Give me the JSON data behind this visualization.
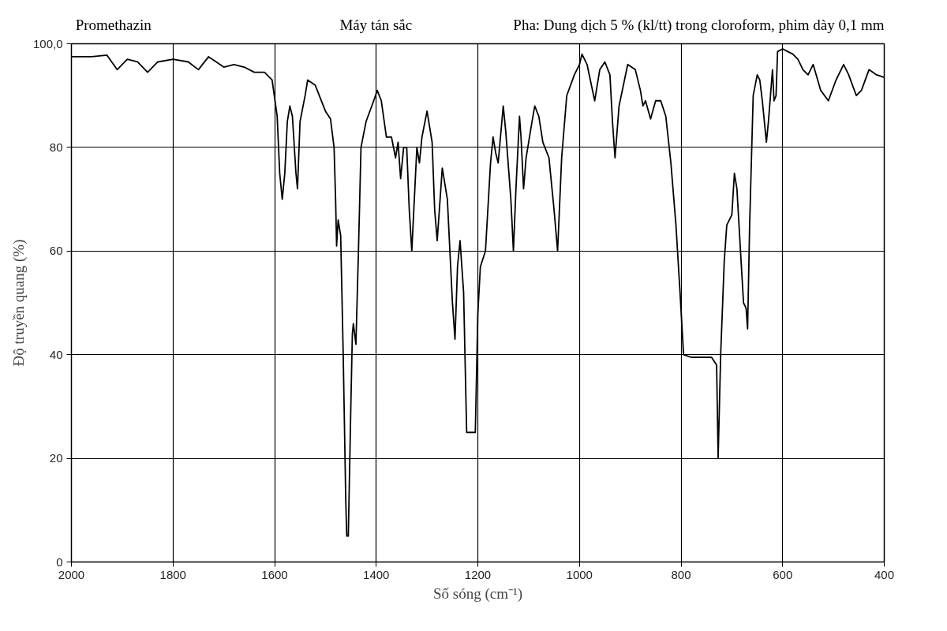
{
  "chart_data": {
    "type": "line",
    "title": "Promethazin",
    "xlabel": "Số sóng (cm⁻¹)",
    "ylabel": "Độ truyền quang (%)",
    "annotations": [
      "Máy tán sắc",
      "Pha: Dung dịch 5 % (kl/tt) trong cloroform, phim dày 0,1 mm"
    ],
    "xlim": [
      2000,
      400
    ],
    "xticks": [
      2000,
      1800,
      1600,
      1400,
      1200,
      1000,
      800,
      600,
      400
    ],
    "ylim": [
      0,
      100
    ],
    "yticks": [
      0,
      20,
      40,
      60,
      80,
      {
        "value": 100,
        "label": "100,0"
      }
    ],
    "grid": true,
    "series": [
      {
        "color": "#000000",
        "x": [
          2000,
          1960,
          1930,
          1910,
          1890,
          1870,
          1850,
          1830,
          1800,
          1770,
          1750,
          1730,
          1700,
          1680,
          1660,
          1640,
          1620,
          1605,
          1595,
          1590,
          1585,
          1580,
          1575,
          1570,
          1565,
          1558,
          1555,
          1550,
          1540,
          1535,
          1520,
          1500,
          1490,
          1483,
          1480,
          1478,
          1475,
          1470,
          1465,
          1460,
          1458,
          1455,
          1450,
          1447,
          1445,
          1440,
          1435,
          1430,
          1420,
          1405,
          1398,
          1390,
          1380,
          1370,
          1362,
          1357,
          1352,
          1346,
          1340,
          1335,
          1330,
          1320,
          1315,
          1310,
          1300,
          1290,
          1285,
          1280,
          1270,
          1260,
          1250,
          1245,
          1240,
          1235,
          1228,
          1222,
          1205,
          1200,
          1195,
          1185,
          1175,
          1170,
          1165,
          1160,
          1150,
          1145,
          1135,
          1130,
          1125,
          1118,
          1115,
          1110,
          1105,
          1095,
          1088,
          1080,
          1072,
          1060,
          1050,
          1043,
          1035,
          1025,
          1010,
          1000,
          995,
          985,
          970,
          960,
          950,
          940,
          935,
          930,
          922,
          905,
          890,
          880,
          875,
          870,
          860,
          850,
          840,
          830,
          820,
          810,
          802,
          795,
          780,
          740,
          730,
          727,
          722,
          715,
          710,
          700,
          695,
          690,
          683,
          677,
          672,
          669,
          665,
          658,
          650,
          645,
          640,
          632,
          628,
          620,
          617,
          613,
          610,
          600,
          590,
          580,
          570,
          560,
          550,
          540,
          525,
          510,
          495,
          480,
          470,
          455,
          445,
          430,
          415,
          400
        ],
        "values": [
          97.5,
          97.5,
          97.8,
          95,
          97,
          96.5,
          94.5,
          96.5,
          97,
          96.5,
          95,
          97.5,
          95.5,
          96,
          95.5,
          94.5,
          94.5,
          93,
          86,
          75,
          70,
          75,
          85,
          88,
          86,
          75,
          72,
          85,
          90,
          93,
          92,
          87,
          85.5,
          80,
          70,
          61,
          66,
          63,
          40,
          12,
          5,
          5,
          30,
          44,
          46,
          42,
          60,
          80,
          85,
          89,
          91,
          89,
          82,
          82,
          78,
          81,
          74,
          80,
          80,
          68,
          60,
          80,
          77,
          82,
          87,
          81,
          68,
          62,
          76,
          70,
          50,
          43,
          57,
          62,
          52,
          25,
          25,
          48,
          57,
          60,
          77,
          82,
          79,
          77,
          88,
          83,
          70,
          60,
          72,
          86,
          82,
          72,
          78,
          84,
          88,
          86,
          81,
          78,
          68,
          60,
          78,
          90,
          94,
          96,
          98,
          96,
          89,
          95,
          96.5,
          94,
          85,
          78,
          88,
          96,
          95,
          91,
          88,
          89,
          85.5,
          89,
          89,
          86,
          77,
          65,
          52,
          40,
          39.5,
          39.5,
          38,
          20,
          40,
          58,
          65,
          67,
          75,
          72,
          60,
          50,
          49,
          45,
          65,
          90,
          94,
          93,
          89,
          81,
          85,
          95,
          89,
          90,
          98.5,
          99,
          98.5,
          98,
          97,
          95,
          94,
          96,
          91,
          89,
          93,
          96,
          94,
          90,
          91,
          95,
          94,
          93.5
        ]
      }
    ]
  }
}
